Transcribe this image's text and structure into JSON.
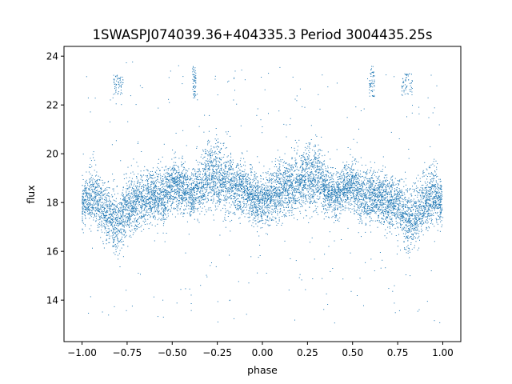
{
  "chart_data": {
    "type": "scatter",
    "title": "1SWASPJ074039.36+404335.3 Period 3004435.25s",
    "xlabel": "phase",
    "ylabel": "flux",
    "xlim": [
      -1.1,
      1.1
    ],
    "ylim": [
      12.3,
      24.4
    ],
    "xticks": [
      -1.0,
      -0.75,
      -0.5,
      -0.25,
      0.0,
      0.25,
      0.5,
      0.75,
      1.0
    ],
    "xtick_labels": [
      "−1.00",
      "−0.75",
      "−0.50",
      "−0.25",
      "0.00",
      "0.25",
      "0.50",
      "0.75",
      "1.00"
    ],
    "yticks": [
      14,
      16,
      18,
      20,
      22,
      24
    ],
    "ytick_labels": [
      "14",
      "16",
      "18",
      "20",
      "22",
      "24"
    ],
    "grid": false,
    "marker_color": "#1f77b4",
    "series": [
      {
        "mirrored_about_zero": true,
        "profile_phase": [
          0.0,
          0.05,
          0.1,
          0.15,
          0.2,
          0.25,
          0.3,
          0.35,
          0.4,
          0.45,
          0.5,
          0.55,
          0.6,
          0.65,
          0.7,
          0.75,
          0.8,
          0.85,
          0.9,
          0.95,
          1.0
        ],
        "profile_flux_center": [
          18.0,
          18.3,
          18.6,
          18.6,
          18.9,
          19.0,
          19.2,
          18.6,
          18.3,
          18.6,
          18.8,
          18.2,
          18.3,
          18.2,
          18.0,
          17.9,
          17.3,
          17.5,
          18.0,
          18.4,
          18.0
        ],
        "profile_flux_spread": [
          1.3,
          1.4,
          1.5,
          1.5,
          1.6,
          1.7,
          1.8,
          1.4,
          1.2,
          1.3,
          1.3,
          1.4,
          1.4,
          1.4,
          1.5,
          1.5,
          1.7,
          1.6,
          1.5,
          1.5,
          1.3
        ],
        "outlier_clusters": [
          {
            "phase_range": [
              0.77,
              0.83
            ],
            "flux_range": [
              22.4,
              23.3
            ]
          },
          {
            "phase_range": [
              -0.83,
              -0.77
            ],
            "flux_range": [
              22.4,
              23.3
            ]
          },
          {
            "phase_range": [
              0.59,
              0.62
            ],
            "flux_range": [
              22.3,
              23.6
            ]
          },
          {
            "phase_range": [
              -0.39,
              -0.37
            ],
            "flux_range": [
              22.3,
              23.6
            ]
          }
        ]
      }
    ]
  }
}
